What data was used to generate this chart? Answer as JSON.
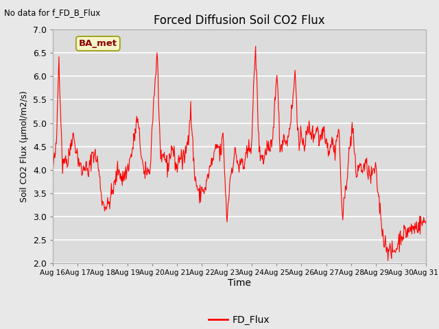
{
  "title": "Forced Diffusion Soil CO2 Flux",
  "no_data_label": "No data for f_FD_B_Flux",
  "xlabel": "Time",
  "ylabel": "Soil CO2 Flux (μmol/m2/s)",
  "ylim": [
    2.0,
    7.0
  ],
  "yticks": [
    2.0,
    2.5,
    3.0,
    3.5,
    4.0,
    4.5,
    5.0,
    5.5,
    6.0,
    6.5,
    7.0
  ],
  "background_color": "#e8e8e8",
  "plot_bg_color": "#dcdcdc",
  "line_color": "red",
  "legend_label": "FD_Flux",
  "legend_box_color": "#f5f5c8",
  "legend_box_border": "#8B8B00",
  "ba_met_label": "BA_met",
  "x_labels": [
    "Aug 16",
    "Aug 17",
    "Aug 18",
    "Aug 19",
    "Aug 20",
    "Aug 21",
    "Aug 22",
    "Aug 23",
    "Aug 24",
    "Aug 25",
    "Aug 26",
    "Aug 27",
    "Aug 28",
    "Aug 29",
    "Aug 30",
    "Aug 31"
  ]
}
